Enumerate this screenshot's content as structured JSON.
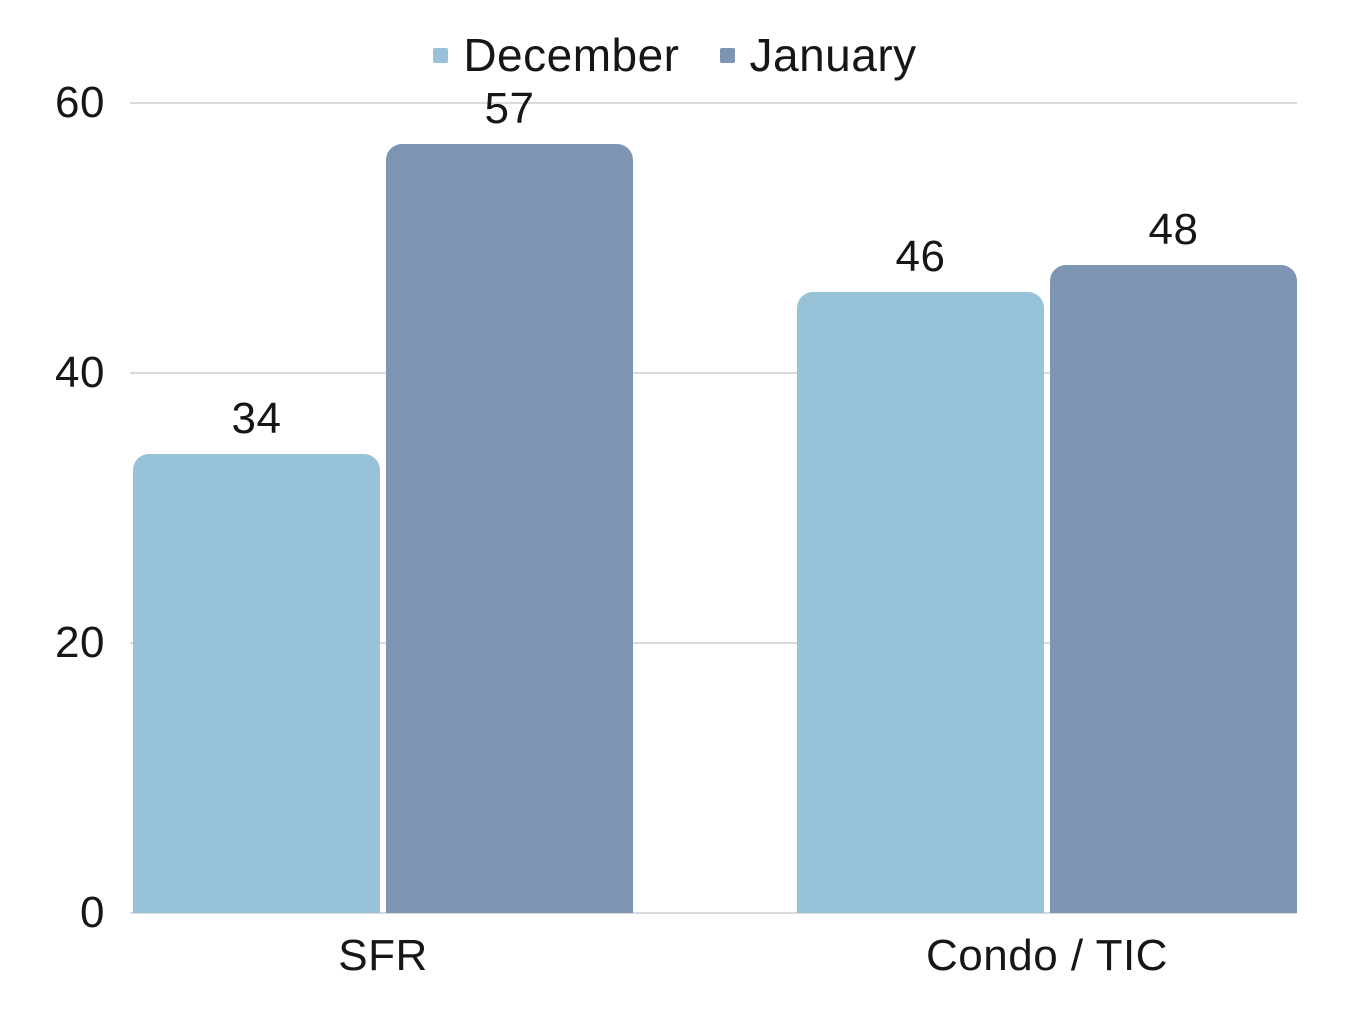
{
  "chart_data": {
    "type": "bar",
    "categories": [
      "SFR",
      "Condo / TIC"
    ],
    "series": [
      {
        "name": "December",
        "color": "#98C2D8",
        "values": [
          34,
          46
        ]
      },
      {
        "name": "January",
        "color": "#7D95B3",
        "values": [
          57,
          48
        ]
      }
    ],
    "title": "",
    "xlabel": "",
    "ylabel": "",
    "ylim": [
      0,
      60
    ],
    "yticks": [
      0,
      20,
      40,
      60
    ],
    "grid": true,
    "legend_position": "top",
    "bar_corner_radius": 16,
    "data_labels_shown": true
  },
  "colors": {
    "background": "#ffffff",
    "gridline": "#dadada",
    "text": "#161616"
  }
}
